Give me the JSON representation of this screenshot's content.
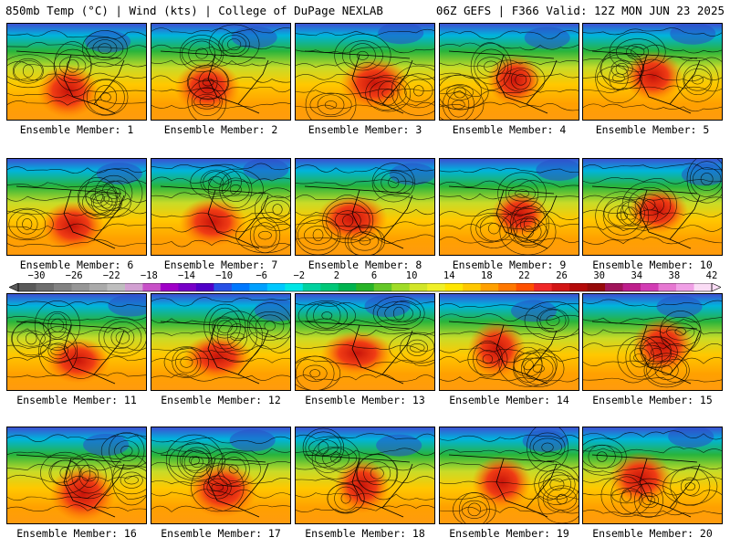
{
  "header": {
    "left_title": "850mb Temp (°C) | Wind (kts) | College of DuPage NEXLAB",
    "right_title": "06Z GEFS | F366 Valid: 12Z MON JUN 23 2025"
  },
  "panels": [
    {
      "caption": "Ensemble Member: 1"
    },
    {
      "caption": "Ensemble Member: 2"
    },
    {
      "caption": "Ensemble Member: 3"
    },
    {
      "caption": "Ensemble Member: 4"
    },
    {
      "caption": "Ensemble Member: 5"
    },
    {
      "caption": "Ensemble Member: 6"
    },
    {
      "caption": "Ensemble Member: 7"
    },
    {
      "caption": "Ensemble Member: 8"
    },
    {
      "caption": "Ensemble Member: 9"
    },
    {
      "caption": "Ensemble Member: 10"
    },
    {
      "caption": "Ensemble Member: 11"
    },
    {
      "caption": "Ensemble Member: 12"
    },
    {
      "caption": "Ensemble Member: 13"
    },
    {
      "caption": "Ensemble Member: 14"
    },
    {
      "caption": "Ensemble Member: 15"
    },
    {
      "caption": "Ensemble Member: 16"
    },
    {
      "caption": "Ensemble Member: 17"
    },
    {
      "caption": "Ensemble Member: 18"
    },
    {
      "caption": "Ensemble Member: 19"
    },
    {
      "caption": "Ensemble Member: 20"
    }
  ],
  "colorbar": {
    "labels": [
      "−30",
      "−26",
      "−22",
      "−18",
      "−14",
      "−10",
      "−6",
      "−2",
      "2",
      "6",
      "10",
      "14",
      "18",
      "22",
      "26",
      "30",
      "34",
      "38",
      "42"
    ],
    "colors": [
      "#5a5a5a",
      "#6e6e6e",
      "#828282",
      "#969696",
      "#aaaaaa",
      "#bebebe",
      "#d2a0d2",
      "#c850c8",
      "#a000c8",
      "#7800c8",
      "#5000c8",
      "#2850e6",
      "#0078ff",
      "#00a0ff",
      "#00c8ff",
      "#00e6e6",
      "#00d2a0",
      "#00c878",
      "#00b450",
      "#28b428",
      "#64c828",
      "#a0dc28",
      "#d2e628",
      "#f0f028",
      "#ffe600",
      "#ffc800",
      "#ffa000",
      "#ff7800",
      "#ff5000",
      "#f02828",
      "#d21414",
      "#b40a0a",
      "#960a0a",
      "#a0145a",
      "#be1e8c",
      "#d23cb4",
      "#e678d2",
      "#f0a0e6",
      "#fadcf5"
    ]
  }
}
